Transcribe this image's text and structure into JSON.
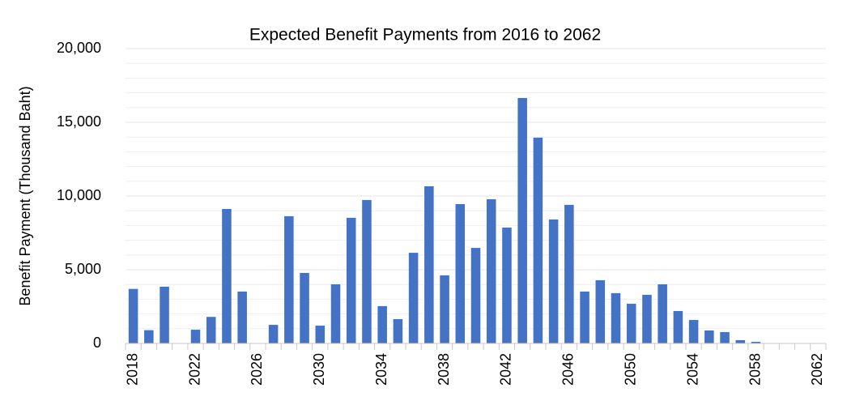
{
  "chart_data": {
    "type": "bar",
    "title": "Expected Benefit Payments from 2016 to 2062",
    "y_label": "Benefit Payment (Thousand Baht)",
    "categories": [
      "2018",
      null,
      null,
      null,
      "2022",
      null,
      null,
      null,
      "2026",
      null,
      null,
      null,
      "2030",
      null,
      null,
      null,
      "2034",
      null,
      null,
      null,
      "2038",
      null,
      null,
      null,
      "2042",
      null,
      null,
      null,
      "2046",
      null,
      null,
      null,
      "2050",
      null,
      null,
      null,
      "2054",
      null,
      null,
      null,
      "2058",
      null,
      null,
      null,
      "2062"
    ],
    "values": [
      3700,
      900,
      3850,
      0,
      930,
      1800,
      9120,
      3520,
      0,
      1260,
      8630,
      4780,
      1210,
      4010,
      8520,
      9730,
      2530,
      1650,
      6150,
      10660,
      4620,
      9450,
      6480,
      9780,
      7860,
      16650,
      13960,
      8410,
      9400,
      3520,
      4290,
      3410,
      2690,
      3300,
      4010,
      2200,
      1590,
      880,
      770,
      220,
      110,
      0,
      0,
      0,
      0
    ],
    "color": "#4472c4",
    "ylim": [
      0,
      20000
    ],
    "yticks": [
      0,
      {
        "value": 5000,
        "label": "5,000"
      },
      {
        "value": 10000,
        "label": "10,000"
      },
      {
        "value": 15000,
        "label": "15,000"
      },
      {
        "value": 20000,
        "label": "20,000"
      }
    ],
    "minor_yticks": [
      1000,
      2000,
      3000,
      4000,
      6000,
      7000,
      8000,
      9000,
      11000,
      12000,
      13000,
      14000,
      16000,
      17000,
      18000,
      19000
    ],
    "grid": true
  }
}
